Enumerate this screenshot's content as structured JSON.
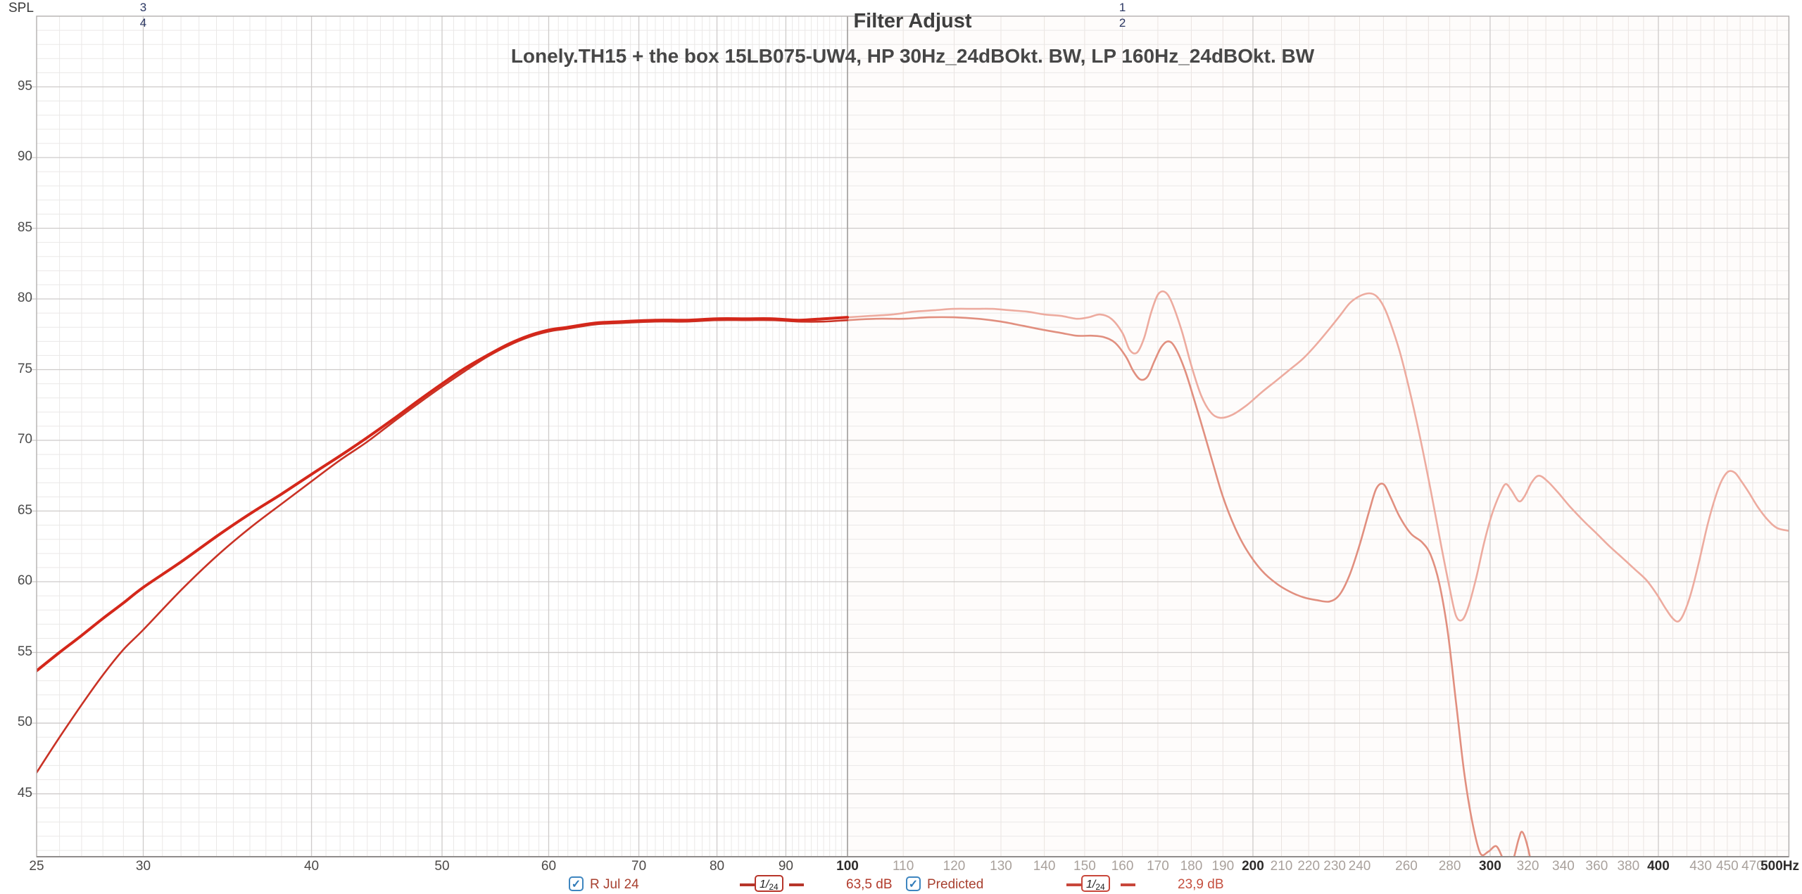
{
  "header": {
    "spl_label": "SPL"
  },
  "markers": [
    {
      "top": "3",
      "bottom": "4",
      "f": 30
    },
    {
      "top": "1",
      "bottom": "2",
      "f": 160
    }
  ],
  "legend": {
    "items": [
      {
        "checked": true,
        "check_glyph": "✓",
        "label": "R Jul 24",
        "smoothing": "1/24",
        "value": "63,5 dB",
        "accent": "#b7352a",
        "value_color": "#b23b2c"
      },
      {
        "checked": true,
        "check_glyph": "✓",
        "label": "Predicted",
        "smoothing": "1/24",
        "value": "23,9 dB",
        "accent": "#c8473b",
        "value_color": "#c54f3e"
      }
    ]
  },
  "colors": {
    "measured_main": "#d4271a",
    "predicted_main": "#c93225",
    "measured_faded": "#edab9f",
    "predicted_faded": "#e18f7f",
    "grid_minor": "#eae8e7",
    "grid_minor_warm": "#eae3e0",
    "grid_major": "#cecbca",
    "boundary_line": "#9e9b9a",
    "border": "#b3b0af",
    "bottom_border": "#8f8c8b",
    "right_region_bg": "#fefcfb",
    "checkbox_blue": "#3e86c0",
    "marker_navy": "#2b3763"
  },
  "chart_data": {
    "type": "line",
    "title": "Filter Adjust",
    "subtitle": "Lonely.TH15 + the box 15LB075-UW4, HP 30Hz_24dBOkt. BW, LP 160Hz_24dBOkt. BW",
    "x_scale": "log",
    "xlabel_unit": "Hz",
    "ylabel": "SPL",
    "x_range": [
      25,
      500
    ],
    "y_range": [
      40.55,
      100
    ],
    "grid": true,
    "measurement_boundary_hz": 100,
    "y_ticks": [
      95,
      90,
      85,
      80,
      75,
      70,
      65,
      60,
      55,
      50,
      45
    ],
    "x_ticks": [
      {
        "f": 25,
        "label": "25",
        "shade": "dark"
      },
      {
        "f": 30,
        "label": "30",
        "shade": "dark"
      },
      {
        "f": 40,
        "label": "40",
        "shade": "dark"
      },
      {
        "f": 50,
        "label": "50",
        "shade": "dark"
      },
      {
        "f": 60,
        "label": "60",
        "shade": "dark"
      },
      {
        "f": 70,
        "label": "70",
        "shade": "dark"
      },
      {
        "f": 80,
        "label": "80",
        "shade": "dark"
      },
      {
        "f": 90,
        "label": "90",
        "shade": "dark"
      },
      {
        "f": 100,
        "label": "100",
        "shade": "bold"
      },
      {
        "f": 110,
        "label": "110",
        "shade": "light"
      },
      {
        "f": 120,
        "label": "120",
        "shade": "light"
      },
      {
        "f": 130,
        "label": "130",
        "shade": "light"
      },
      {
        "f": 140,
        "label": "140",
        "shade": "light"
      },
      {
        "f": 150,
        "label": "150",
        "shade": "light"
      },
      {
        "f": 160,
        "label": "160",
        "shade": "light"
      },
      {
        "f": 170,
        "label": "170",
        "shade": "light"
      },
      {
        "f": 180,
        "label": "180",
        "shade": "light"
      },
      {
        "f": 190,
        "label": "190",
        "shade": "light"
      },
      {
        "f": 200,
        "label": "200",
        "shade": "bold"
      },
      {
        "f": 210,
        "label": "210",
        "shade": "light"
      },
      {
        "f": 220,
        "label": "220",
        "shade": "light"
      },
      {
        "f": 230,
        "label": "230",
        "shade": "light"
      },
      {
        "f": 240,
        "label": "240",
        "shade": "light"
      },
      {
        "f": 260,
        "label": "260",
        "shade": "light"
      },
      {
        "f": 280,
        "label": "280",
        "shade": "light"
      },
      {
        "f": 300,
        "label": "300",
        "shade": "bold"
      },
      {
        "f": 320,
        "label": "320",
        "shade": "light"
      },
      {
        "f": 340,
        "label": "340",
        "shade": "light"
      },
      {
        "f": 360,
        "label": "360",
        "shade": "light"
      },
      {
        "f": 380,
        "label": "380",
        "shade": "light"
      },
      {
        "f": 400,
        "label": "400",
        "shade": "bold"
      },
      {
        "f": 430,
        "label": "430",
        "shade": "light"
      },
      {
        "f": 450,
        "label": "450",
        "shade": "light"
      },
      {
        "f": 470,
        "label": "470",
        "shade": "light"
      },
      {
        "f": 500,
        "label": "500Hz",
        "shade": "bold"
      }
    ],
    "series": [
      {
        "name": "R Jul 24 (measured)",
        "segment": "main",
        "color_role": "measured_main",
        "width": 4,
        "points": [
          [
            25,
            53.7
          ],
          [
            26,
            55.0
          ],
          [
            27,
            56.2
          ],
          [
            28,
            57.4
          ],
          [
            29,
            58.5
          ],
          [
            30,
            59.6
          ],
          [
            32,
            61.4
          ],
          [
            34,
            63.2
          ],
          [
            36,
            64.8
          ],
          [
            38,
            66.2
          ],
          [
            40,
            67.6
          ],
          [
            42,
            68.9
          ],
          [
            44,
            70.2
          ],
          [
            46,
            71.5
          ],
          [
            48,
            72.8
          ],
          [
            50,
            74.0
          ],
          [
            52,
            75.1
          ],
          [
            54,
            76.0
          ],
          [
            56,
            76.8
          ],
          [
            58,
            77.4
          ],
          [
            60,
            77.8
          ],
          [
            62,
            78.0
          ],
          [
            65,
            78.3
          ],
          [
            68,
            78.4
          ],
          [
            72,
            78.5
          ],
          [
            76,
            78.5
          ],
          [
            80,
            78.6
          ],
          [
            84,
            78.6
          ],
          [
            88,
            78.6
          ],
          [
            92,
            78.5
          ],
          [
            96,
            78.6
          ],
          [
            100,
            78.7
          ]
        ]
      },
      {
        "name": "Predicted",
        "segment": "main",
        "color_role": "predicted_main",
        "width": 2.6,
        "points": [
          [
            25,
            46.5
          ],
          [
            26,
            49.0
          ],
          [
            27,
            51.3
          ],
          [
            28,
            53.4
          ],
          [
            29,
            55.2
          ],
          [
            30,
            56.6
          ],
          [
            32,
            59.4
          ],
          [
            34,
            61.8
          ],
          [
            36,
            63.8
          ],
          [
            38,
            65.5
          ],
          [
            40,
            67.1
          ],
          [
            42,
            68.6
          ],
          [
            44,
            69.9
          ],
          [
            46,
            71.3
          ],
          [
            48,
            72.6
          ],
          [
            50,
            73.8
          ],
          [
            52,
            74.9
          ],
          [
            54,
            75.9
          ],
          [
            56,
            76.7
          ],
          [
            58,
            77.3
          ],
          [
            60,
            77.7
          ],
          [
            62,
            77.9
          ],
          [
            65,
            78.2
          ],
          [
            68,
            78.3
          ],
          [
            72,
            78.4
          ],
          [
            76,
            78.4
          ],
          [
            80,
            78.5
          ],
          [
            84,
            78.5
          ],
          [
            88,
            78.5
          ],
          [
            92,
            78.4
          ],
          [
            96,
            78.4
          ],
          [
            100,
            78.5
          ]
        ]
      },
      {
        "name": "R Jul 24 (out of range, faded)",
        "segment": "faded",
        "color_role": "measured_faded",
        "width": 2.6,
        "points": [
          [
            100,
            78.7
          ],
          [
            104,
            78.8
          ],
          [
            108,
            78.9
          ],
          [
            112,
            79.1
          ],
          [
            116,
            79.2
          ],
          [
            120,
            79.3
          ],
          [
            124,
            79.3
          ],
          [
            128,
            79.3
          ],
          [
            132,
            79.2
          ],
          [
            136,
            79.1
          ],
          [
            140,
            78.9
          ],
          [
            144,
            78.8
          ],
          [
            148,
            78.6
          ],
          [
            151,
            78.7
          ],
          [
            154,
            78.9
          ],
          [
            157,
            78.6
          ],
          [
            160,
            77.6
          ],
          [
            162,
            76.4
          ],
          [
            164,
            76.2
          ],
          [
            166,
            77.2
          ],
          [
            168,
            79.0
          ],
          [
            170,
            80.3
          ],
          [
            172,
            80.5
          ],
          [
            174,
            79.8
          ],
          [
            177,
            77.8
          ],
          [
            180,
            75.3
          ],
          [
            183,
            73.2
          ],
          [
            186,
            72.0
          ],
          [
            189,
            71.6
          ],
          [
            193,
            71.8
          ],
          [
            198,
            72.5
          ],
          [
            203,
            73.4
          ],
          [
            208,
            74.2
          ],
          [
            213,
            75.0
          ],
          [
            218,
            75.8
          ],
          [
            223,
            76.8
          ],
          [
            228,
            77.9
          ],
          [
            232,
            78.8
          ],
          [
            236,
            79.7
          ],
          [
            240,
            80.2
          ],
          [
            244,
            80.4
          ],
          [
            247,
            80.2
          ],
          [
            250,
            79.5
          ],
          [
            253,
            78.3
          ],
          [
            257,
            76.3
          ],
          [
            261,
            73.8
          ],
          [
            266,
            70.3
          ],
          [
            271,
            66.5
          ],
          [
            276,
            62.5
          ],
          [
            280,
            59.5
          ],
          [
            283,
            57.6
          ],
          [
            286,
            57.3
          ],
          [
            289,
            58.2
          ],
          [
            293,
            60.3
          ],
          [
            297,
            62.8
          ],
          [
            301,
            64.8
          ],
          [
            305,
            66.2
          ],
          [
            308,
            66.9
          ],
          [
            311,
            66.5
          ],
          [
            315,
            65.7
          ],
          [
            318,
            66.0
          ],
          [
            322,
            67.0
          ],
          [
            326,
            67.5
          ],
          [
            331,
            67.1
          ],
          [
            337,
            66.3
          ],
          [
            344,
            65.3
          ],
          [
            352,
            64.3
          ],
          [
            360,
            63.4
          ],
          [
            368,
            62.5
          ],
          [
            376,
            61.7
          ],
          [
            384,
            60.9
          ],
          [
            392,
            60.1
          ],
          [
            399,
            59.1
          ],
          [
            405,
            58.1
          ],
          [
            410,
            57.4
          ],
          [
            414,
            57.2
          ],
          [
            418,
            57.8
          ],
          [
            423,
            59.2
          ],
          [
            429,
            61.5
          ],
          [
            435,
            64.0
          ],
          [
            441,
            66.0
          ],
          [
            446,
            67.2
          ],
          [
            451,
            67.8
          ],
          [
            456,
            67.7
          ],
          [
            461,
            67.1
          ],
          [
            467,
            66.3
          ],
          [
            474,
            65.3
          ],
          [
            482,
            64.4
          ],
          [
            490,
            63.8
          ],
          [
            500,
            63.6
          ]
        ]
      },
      {
        "name": "Predicted (faded)",
        "segment": "faded",
        "color_role": "predicted_faded",
        "width": 2.6,
        "points": [
          [
            100,
            78.5
          ],
          [
            105,
            78.6
          ],
          [
            110,
            78.6
          ],
          [
            115,
            78.7
          ],
          [
            120,
            78.7
          ],
          [
            125,
            78.6
          ],
          [
            130,
            78.4
          ],
          [
            135,
            78.1
          ],
          [
            140,
            77.8
          ],
          [
            144,
            77.6
          ],
          [
            148,
            77.4
          ],
          [
            152,
            77.4
          ],
          [
            155,
            77.3
          ],
          [
            158,
            76.9
          ],
          [
            161,
            75.9
          ],
          [
            163,
            74.9
          ],
          [
            165,
            74.3
          ],
          [
            167,
            74.5
          ],
          [
            169,
            75.6
          ],
          [
            171,
            76.6
          ],
          [
            173,
            77.0
          ],
          [
            175,
            76.6
          ],
          [
            178,
            75.0
          ],
          [
            181,
            72.8
          ],
          [
            184,
            70.5
          ],
          [
            187,
            68.2
          ],
          [
            190,
            66.0
          ],
          [
            194,
            63.8
          ],
          [
            198,
            62.2
          ],
          [
            203,
            60.8
          ],
          [
            208,
            59.9
          ],
          [
            213,
            59.3
          ],
          [
            218,
            58.9
          ],
          [
            223,
            58.7
          ],
          [
            228,
            58.6
          ],
          [
            232,
            59.1
          ],
          [
            236,
            60.5
          ],
          [
            240,
            62.6
          ],
          [
            244,
            65.0
          ],
          [
            247,
            66.6
          ],
          [
            250,
            66.9
          ],
          [
            253,
            66.0
          ],
          [
            257,
            64.6
          ],
          [
            262,
            63.4
          ],
          [
            267,
            62.8
          ],
          [
            271,
            61.9
          ],
          [
            275,
            59.9
          ],
          [
            279,
            56.5
          ],
          [
            283,
            51.5
          ],
          [
            287,
            46.5
          ],
          [
            291,
            43.0
          ],
          [
            295,
            40.8
          ],
          [
            299,
            40.9
          ],
          [
            303,
            41.3
          ],
          [
            306,
            40.6
          ],
          [
            309,
            39.6
          ],
          [
            312,
            40.3
          ],
          [
            315,
            41.8
          ],
          [
            317,
            42.3
          ],
          [
            320,
            41.2
          ],
          [
            323,
            39.2
          ],
          [
            326,
            36.5
          ]
        ]
      }
    ]
  }
}
